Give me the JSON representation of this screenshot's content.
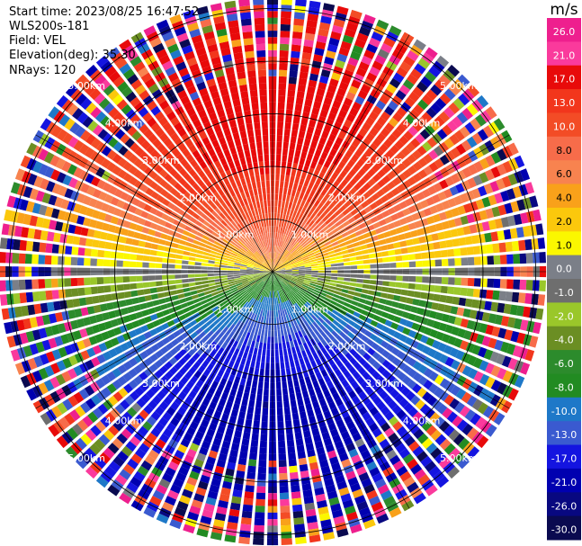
{
  "header": {
    "start_time": "Start time: 2023/08/25 16:47:52",
    "instrument": "WLS200s-181",
    "field": "Field: VEL",
    "elevation": "Elevation(deg): 35.30",
    "nrays": "NRays: 120"
  },
  "chart_data": {
    "type": "ppi",
    "field": "VEL",
    "nrays": 120,
    "range_rings_km": [
      1,
      2,
      3,
      4,
      5
    ],
    "range_labels": [
      "1.00km",
      "2.00km",
      "3.00km",
      "4.00km",
      "5.00km"
    ],
    "max_range_km": 5.2,
    "wind_pattern": {
      "toward_color_top_max": 20,
      "gradient_direction": "north-positive, south-negative",
      "noisy_beyond_km": 3.6
    },
    "colorbar": {
      "unit": "m/s",
      "ticks": [
        "26.0",
        "21.0",
        "17.0",
        "13.0",
        "10.0",
        "8.0",
        "6.0",
        "4.0",
        "2.0",
        "1.0",
        "0.0",
        "-1.0",
        "-2.0",
        "-4.0",
        "-6.0",
        "-8.0",
        "-10.0",
        "-13.0",
        "-17.0",
        "-21.0",
        "-26.0",
        "-30.0"
      ],
      "bins": [
        {
          "lo": 26,
          "hi": 30,
          "color": "#ee1f8e"
        },
        {
          "lo": 21,
          "hi": 26,
          "color": "#fa3a9c"
        },
        {
          "lo": 17,
          "hi": 21,
          "color": "#e80a0a"
        },
        {
          "lo": 13,
          "hi": 17,
          "color": "#f2361c"
        },
        {
          "lo": 10,
          "hi": 13,
          "color": "#f34c26"
        },
        {
          "lo": 8,
          "hi": 10,
          "color": "#f76c4a"
        },
        {
          "lo": 6,
          "hi": 8,
          "color": "#f8834f"
        },
        {
          "lo": 4,
          "hi": 6,
          "color": "#f9a11a"
        },
        {
          "lo": 2,
          "hi": 4,
          "color": "#fbc80c"
        },
        {
          "lo": 1,
          "hi": 2,
          "color": "#fbf700"
        },
        {
          "lo": 0,
          "hi": 1,
          "color": "#7b7f88"
        },
        {
          "lo": -1,
          "hi": 0,
          "color": "#6e6e6e"
        },
        {
          "lo": -2,
          "hi": -1,
          "color": "#9ac72a"
        },
        {
          "lo": -4,
          "hi": -2,
          "color": "#6b8e23"
        },
        {
          "lo": -6,
          "hi": -4,
          "color": "#2c8b2c"
        },
        {
          "lo": -8,
          "hi": -6,
          "color": "#228b22"
        },
        {
          "lo": -10,
          "hi": -8,
          "color": "#1e78c8"
        },
        {
          "lo": -13,
          "hi": -10,
          "color": "#3a5ad0"
        },
        {
          "lo": -17,
          "hi": -13,
          "color": "#1414e0"
        },
        {
          "lo": -21,
          "hi": -17,
          "color": "#0000b0"
        },
        {
          "lo": -26,
          "hi": -21,
          "color": "#080880"
        },
        {
          "lo": -30,
          "hi": -26,
          "color": "#0a0a50"
        }
      ]
    }
  }
}
